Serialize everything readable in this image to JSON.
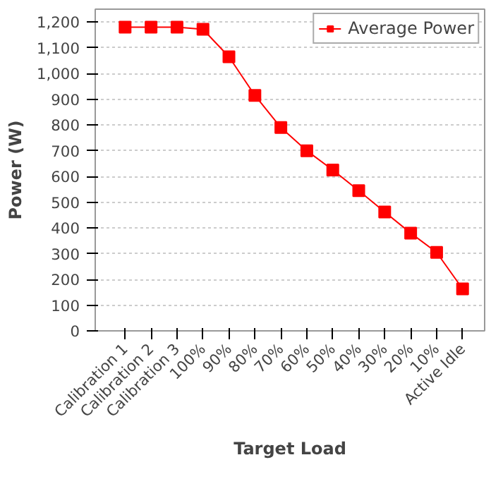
{
  "chart_data": {
    "type": "line",
    "xlabel": "Target Load",
    "ylabel": "Power (W)",
    "categories": [
      "Calibration 1",
      "Calibration 2",
      "Calibration 3",
      "100%",
      "90%",
      "80%",
      "70%",
      "60%",
      "50%",
      "40%",
      "30%",
      "20%",
      "10%",
      "Active Idle"
    ],
    "series": [
      {
        "name": "Average Power",
        "color": "#ff0000",
        "values": [
          1180,
          1180,
          1180,
          1172,
          1065,
          915,
          790,
          700,
          625,
          545,
          462,
          380,
          305,
          163
        ]
      }
    ],
    "ylim": [
      0,
      1250
    ],
    "yticks": [
      0,
      {
        "value": 100,
        "label": "100"
      },
      {
        "value": 200,
        "label": "200"
      },
      {
        "value": 300,
        "label": "300"
      },
      {
        "value": 400,
        "label": "400"
      },
      {
        "value": 500,
        "label": "500"
      },
      {
        "value": 600,
        "label": "600"
      },
      {
        "value": 700,
        "label": "700"
      },
      {
        "value": 800,
        "label": "800"
      },
      {
        "value": 900,
        "label": "900"
      },
      {
        "value": 1000,
        "label": "1,000"
      },
      {
        "value": 1100,
        "label": "1,100"
      },
      {
        "value": 1200,
        "label": "1,200"
      }
    ],
    "grid": "y",
    "legend": "top",
    "marker": "square",
    "line_style": "solid"
  }
}
